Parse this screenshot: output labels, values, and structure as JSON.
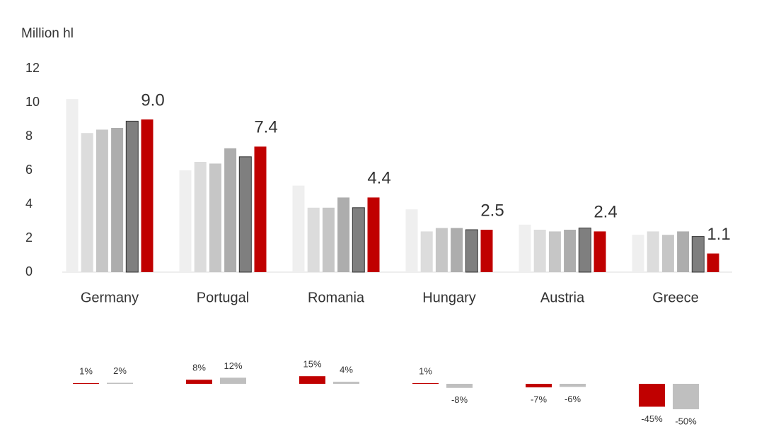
{
  "chart_data": [
    {
      "type": "bar",
      "y_label": "Million hl",
      "categories": [
        "Germany",
        "Portugal",
        "Romania",
        "Hungary",
        "Austria",
        "Greece"
      ],
      "ylim": [
        0,
        12
      ],
      "yticks": [
        0,
        2,
        4,
        6,
        8,
        10,
        12
      ],
      "series": [
        {
          "color": "#efefef",
          "values": [
            10.2,
            6.0,
            5.1,
            3.7,
            2.8,
            2.2
          ]
        },
        {
          "color": "#dcdcdc",
          "values": [
            8.2,
            6.5,
            3.8,
            2.4,
            2.5,
            2.4
          ]
        },
        {
          "color": "#c6c6c6",
          "values": [
            8.4,
            6.4,
            3.8,
            2.6,
            2.4,
            2.2
          ]
        },
        {
          "color": "#adadad",
          "values": [
            8.5,
            7.3,
            4.4,
            2.6,
            2.5,
            2.4
          ]
        },
        {
          "color": "#7f7f7f",
          "values": [
            8.9,
            6.8,
            3.8,
            2.5,
            2.6,
            2.1
          ]
        },
        {
          "color": "#c00000",
          "values": [
            9.0,
            7.4,
            4.4,
            2.5,
            2.4,
            1.1
          ],
          "value_labels": [
            "9.0",
            "7.4",
            "4.4",
            "2.5",
            "2.4",
            "1.1"
          ]
        }
      ]
    },
    {
      "type": "change",
      "series": [
        {
          "color": "#c00000",
          "values": [
            1,
            8,
            15,
            1,
            -7,
            -45
          ],
          "value_labels": [
            "1%",
            "8%",
            "15%",
            "1%",
            "-7%",
            "-45%"
          ]
        },
        {
          "color": "#bfbfbf",
          "values": [
            2,
            12,
            4,
            -8,
            -6,
            -50
          ],
          "value_labels": [
            "2%",
            "12%",
            "4%",
            "-8%",
            "-6%",
            "-50%"
          ]
        }
      ]
    }
  ]
}
